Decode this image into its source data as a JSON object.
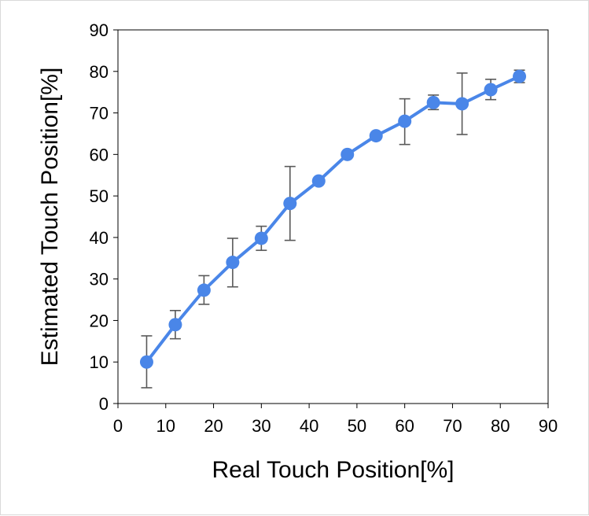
{
  "chart_data": {
    "type": "line",
    "xlabel": "Real Touch Position[%]",
    "ylabel": "Estimated Touch Position[%]",
    "xlim": [
      0,
      90
    ],
    "ylim": [
      0,
      90
    ],
    "xticks": [
      0,
      10,
      20,
      30,
      40,
      50,
      60,
      70,
      80,
      90
    ],
    "yticks": [
      0,
      10,
      20,
      30,
      40,
      50,
      60,
      70,
      80,
      90
    ],
    "grid": false,
    "legend": "none",
    "series": [
      {
        "color": "#4a86e8",
        "error_color": "#595959",
        "x": [
          6,
          12,
          18,
          24,
          30,
          36,
          42,
          48,
          54,
          60,
          66,
          72,
          78,
          84
        ],
        "y": [
          10,
          19,
          27.3,
          34,
          39.8,
          48.2,
          53.6,
          60,
          64.5,
          68,
          72.5,
          72.2,
          75.6,
          78.8
        ],
        "error_low": [
          3.8,
          15.6,
          23.9,
          28.1,
          36.9,
          39.3,
          53.6,
          60,
          64.5,
          62.4,
          70.8,
          64.8,
          73.2,
          77.3
        ],
        "error_high": [
          16.3,
          22.4,
          30.8,
          39.8,
          42.7,
          57.1,
          53.6,
          60,
          64.5,
          73.4,
          74.3,
          79.6,
          78.1,
          80.3
        ]
      }
    ]
  }
}
